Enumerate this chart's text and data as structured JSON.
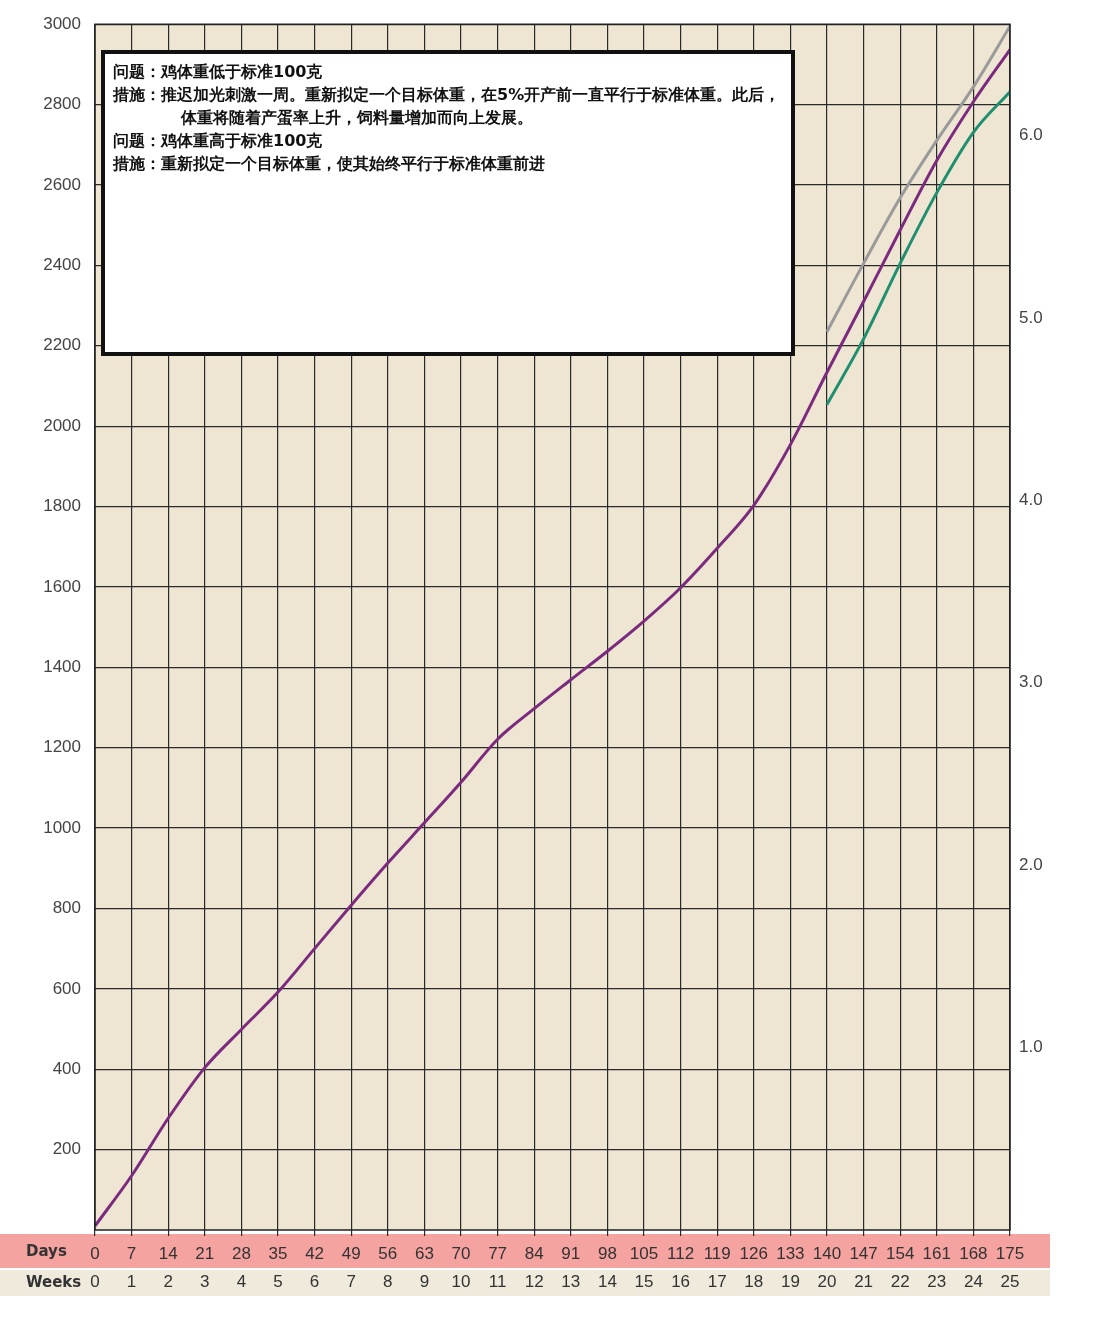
{
  "chart_data": {
    "type": "line",
    "xlabel": "Days",
    "x2label": "Weeks",
    "xlim": [
      0,
      175
    ],
    "xticks": [
      0,
      7,
      14,
      21,
      28,
      35,
      42,
      49,
      56,
      63,
      70,
      77,
      84,
      91,
      98,
      105,
      112,
      119,
      126,
      133,
      140,
      147,
      154,
      161,
      168,
      175
    ],
    "x2lim": [
      0,
      25
    ],
    "x2ticks": [
      0,
      1,
      2,
      3,
      4,
      5,
      6,
      7,
      8,
      9,
      10,
      11,
      12,
      13,
      14,
      15,
      16,
      17,
      18,
      19,
      20,
      21,
      22,
      23,
      24,
      25
    ],
    "ylim": [
      0,
      3000
    ],
    "yticks": [
      200,
      400,
      600,
      800,
      1000,
      1200,
      1400,
      1600,
      1800,
      2000,
      2200,
      2400,
      2600,
      2800,
      3000
    ],
    "y2lim": [
      0,
      6.61
    ],
    "y2ticks": [
      {
        "value": 1,
        "label": "1.0"
      },
      {
        "value": 2,
        "label": "2.0"
      },
      {
        "value": 3,
        "label": "3.0"
      },
      {
        "value": 4,
        "label": "4.0"
      },
      {
        "value": 5,
        "label": "5.0"
      },
      {
        "value": 6,
        "label": "6.0"
      }
    ],
    "series": [
      {
        "color": "#7b2a7e",
        "x": [
          0,
          7,
          14,
          21,
          28,
          35,
          42,
          49,
          56,
          63,
          70,
          77,
          84,
          91,
          98,
          105,
          112,
          119,
          126,
          133,
          140,
          147,
          154,
          161,
          168,
          175
        ],
        "values": [
          10,
          135,
          278,
          404,
          499,
          592,
          700,
          808,
          913,
          1013,
          1114,
          1221,
          1297,
          1369,
          1440,
          1515,
          1598,
          1696,
          1803,
          1954,
          2134,
          2310,
          2488,
          2661,
          2807,
          2937
        ]
      },
      {
        "color": "#9a9a9a",
        "x": [
          140,
          147,
          154,
          161,
          168,
          175
        ],
        "values": [
          2235,
          2405,
          2568,
          2711,
          2844,
          2995
        ]
      },
      {
        "color": "#1f8f6f",
        "x": [
          140,
          147,
          154,
          161,
          168,
          175
        ],
        "values": [
          2054,
          2217,
          2405,
          2581,
          2731,
          2832
        ]
      }
    ],
    "annotations": [
      "问题：鸡体重低于标准100克",
      "措施：推迟加光刺激一周。重新拟定一个目标体重，在5%开产前一直平行于标准体重。此后，体重将随着产蛋率上升，饲料量增加而向上发展。",
      "问题：鸡体重高于标准100克",
      "措施：重新拟定一个目标体重，使其始终平行于标准体重前进"
    ],
    "grid": true,
    "legend": false,
    "marker": "none",
    "line_style": "solid"
  }
}
